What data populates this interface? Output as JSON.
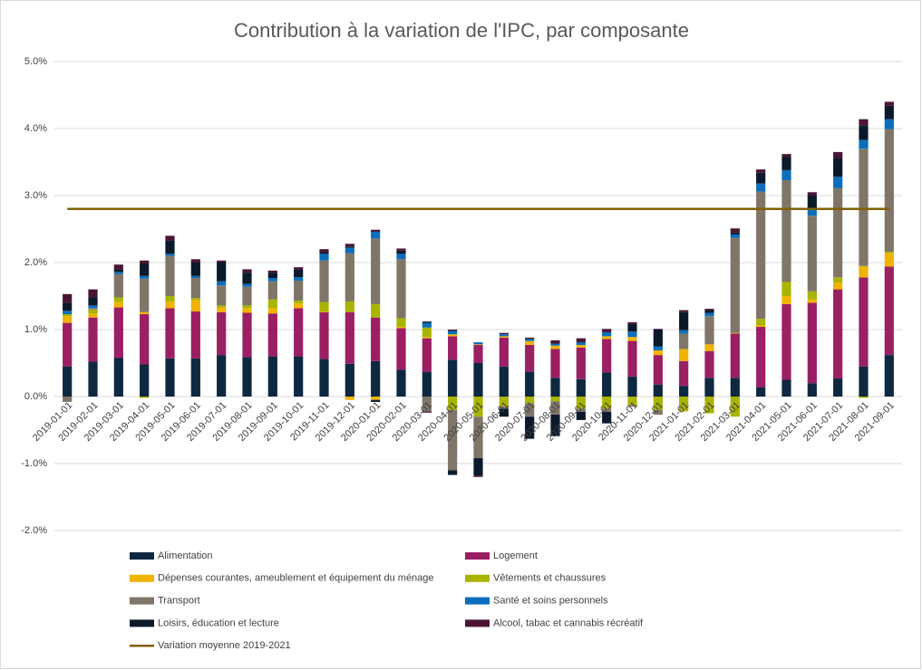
{
  "chart_data": {
    "type": "bar",
    "stacked": true,
    "title": "Contribution à la variation de l'IPC, par composante",
    "categories": [
      "2019-01-01",
      "2019-02-01",
      "2019-03-01",
      "2019-04-01",
      "2019-05-01",
      "2019-06-01",
      "2019-07-01",
      "2019-08-01",
      "2019-09-01",
      "2019-10-01",
      "2019-11-01",
      "2019-12-01",
      "2020-01-01",
      "2020-02-01",
      "2020-03-01",
      "2020-04-01",
      "2020-05-01",
      "2020-06-01",
      "2020-07-01",
      "2020-08-01",
      "2020-09-01",
      "2020-10-01",
      "2020-11-01",
      "2020-12-01",
      "2021-01-01",
      "2021-02-01",
      "2021-03-01",
      "2021-04-01",
      "2021-05-01",
      "2021-06-01",
      "2021-07-01",
      "2021-08-01",
      "2021-09-01"
    ],
    "ylim": [
      -2,
      5
    ],
    "yticks": [
      {
        "value": -2,
        "label": "-2.0%"
      },
      {
        "value": -1,
        "label": "-1.0%"
      },
      {
        "value": 0,
        "label": "0.0%"
      },
      {
        "value": 1,
        "label": "1.0%"
      },
      {
        "value": 2,
        "label": "2.0%"
      },
      {
        "value": 3,
        "label": "3.0%"
      },
      {
        "value": 4,
        "label": "4.0%"
      },
      {
        "value": 5,
        "label": "5.0%"
      }
    ],
    "grid": true,
    "series": [
      {
        "name": "Alimentation",
        "color": "#0e2841",
        "values": [
          0.45,
          0.52,
          0.58,
          0.48,
          0.57,
          0.57,
          0.62,
          0.59,
          0.6,
          0.6,
          0.56,
          0.49,
          0.53,
          0.4,
          0.37,
          0.55,
          0.5,
          0.45,
          0.37,
          0.28,
          0.26,
          0.36,
          0.3,
          0.18,
          0.16,
          0.28,
          0.28,
          0.14,
          0.25,
          0.2,
          0.27,
          0.45,
          0.62
        ]
      },
      {
        "name": "Logement",
        "color": "#9b1f63",
        "values": [
          0.65,
          0.66,
          0.75,
          0.75,
          0.75,
          0.7,
          0.64,
          0.66,
          0.64,
          0.72,
          0.7,
          0.77,
          0.65,
          0.62,
          0.5,
          0.35,
          0.27,
          0.43,
          0.4,
          0.43,
          0.47,
          0.5,
          0.53,
          0.44,
          0.37,
          0.4,
          0.66,
          0.9,
          1.13,
          1.2,
          1.33,
          1.33,
          1.32
        ]
      },
      {
        "name": "Dépenses courantes, ameublement et équipement du ménage",
        "color": "#f0b400",
        "values": [
          0.1,
          0.06,
          0.08,
          0.03,
          0.1,
          0.17,
          0.07,
          0.07,
          0.08,
          0.07,
          0.01,
          -0.05,
          -0.05,
          0.02,
          0.02,
          0.03,
          0.01,
          0.02,
          0.06,
          0.05,
          0.04,
          0.04,
          0.06,
          0.07,
          0.18,
          0.1,
          0.01,
          0.02,
          0.12,
          0.05,
          0.1,
          0.17,
          0.2
        ]
      },
      {
        "name": "Vêtements et chaussures",
        "color": "#a8b400",
        "values": [
          0.03,
          0.06,
          0.07,
          -0.02,
          0.08,
          0.03,
          0.03,
          0.04,
          0.13,
          0.04,
          0.14,
          0.16,
          0.2,
          0.13,
          0.14,
          -0.2,
          -0.3,
          -0.15,
          -0.1,
          -0.07,
          -0.18,
          -0.18,
          -0.13,
          -0.2,
          -0.22,
          -0.25,
          -0.3,
          0.1,
          0.21,
          0.12,
          0.08,
          -0.02,
          0.02
        ]
      },
      {
        "name": "Transport",
        "color": "#7f7668",
        "values": [
          -0.08,
          0.02,
          0.35,
          0.5,
          0.6,
          0.3,
          0.3,
          0.28,
          0.27,
          0.3,
          0.62,
          0.72,
          0.98,
          0.88,
          -0.22,
          -0.9,
          -0.62,
          -0.03,
          -0.2,
          -0.2,
          -0.05,
          -0.05,
          -0.02,
          -0.07,
          0.23,
          0.42,
          1.42,
          1.9,
          1.52,
          1.13,
          1.33,
          1.75,
          1.83
        ]
      },
      {
        "name": "Santé et soins personnels",
        "color": "#0a6ebd",
        "values": [
          0.05,
          0.04,
          0.03,
          0.04,
          0.03,
          0.03,
          0.06,
          0.04,
          0.05,
          0.05,
          0.1,
          0.08,
          0.1,
          0.08,
          0.07,
          0.05,
          0.03,
          0.03,
          0.03,
          0.03,
          0.04,
          0.06,
          0.08,
          0.06,
          0.05,
          0.05,
          0.05,
          0.12,
          0.15,
          0.1,
          0.17,
          0.13,
          0.15
        ]
      },
      {
        "name": "Loisirs, éducation et lecture",
        "color": "#0b1a2b",
        "values": [
          0.12,
          0.12,
          0.04,
          0.18,
          0.2,
          0.2,
          0.28,
          0.17,
          0.08,
          0.12,
          0.03,
          0.02,
          -0.03,
          0.05,
          0.02,
          -0.07,
          -0.26,
          -0.12,
          -0.33,
          -0.32,
          -0.12,
          -0.17,
          0.12,
          0.25,
          0.27,
          0.04,
          0.03,
          0.16,
          0.2,
          0.2,
          0.28,
          0.22,
          0.2
        ]
      },
      {
        "name": "Alcool, tabac et cannabis récréatif",
        "color": "#4a1535",
        "values": [
          0.13,
          0.12,
          0.07,
          0.05,
          0.07,
          0.05,
          0.03,
          0.05,
          0.03,
          0.03,
          0.04,
          0.04,
          0.03,
          0.03,
          -0.02,
          0.02,
          -0.02,
          0.02,
          0.02,
          0.05,
          0.06,
          0.05,
          0.02,
          0.01,
          0.03,
          0.02,
          0.06,
          0.05,
          0.04,
          0.05,
          0.09,
          0.09,
          0.06
        ]
      },
      {
        "name": "Variation moyenne 2019-2021",
        "color": "#7f6000",
        "type": "line",
        "values": [
          2.8,
          2.8,
          2.8,
          2.8,
          2.8,
          2.8,
          2.8,
          2.8,
          2.8,
          2.8,
          2.8,
          2.8,
          2.8,
          2.8,
          2.8,
          2.8,
          2.8,
          2.8,
          2.8,
          2.8,
          2.8,
          2.8,
          2.8,
          2.8,
          2.8,
          2.8,
          2.8,
          2.8,
          2.8,
          2.8,
          2.8,
          2.8,
          2.8
        ]
      }
    ]
  }
}
